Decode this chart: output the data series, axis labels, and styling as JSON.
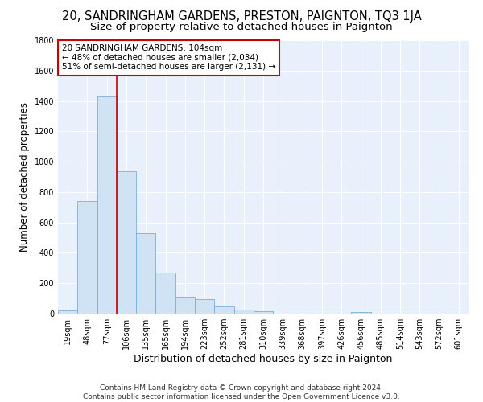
{
  "title1": "20, SANDRINGHAM GARDENS, PRESTON, PAIGNTON, TQ3 1JA",
  "title2": "Size of property relative to detached houses in Paignton",
  "xlabel": "Distribution of detached houses by size in Paignton",
  "ylabel": "Number of detached properties",
  "footnote1": "Contains HM Land Registry data © Crown copyright and database right 2024.",
  "footnote2": "Contains public sector information licensed under the Open Government Licence v3.0.",
  "bar_labels": [
    "19sqm",
    "48sqm",
    "77sqm",
    "106sqm",
    "135sqm",
    "165sqm",
    "194sqm",
    "223sqm",
    "252sqm",
    "281sqm",
    "310sqm",
    "339sqm",
    "368sqm",
    "397sqm",
    "426sqm",
    "456sqm",
    "485sqm",
    "514sqm",
    "543sqm",
    "572sqm",
    "601sqm"
  ],
  "bar_values": [
    20,
    740,
    1430,
    935,
    530,
    270,
    105,
    95,
    50,
    25,
    15,
    2,
    2,
    2,
    2,
    13,
    2,
    2,
    2,
    2,
    2
  ],
  "bar_color": "#d0e3f5",
  "bar_edge_color": "#7bafd4",
  "red_line_x": 2.5,
  "red_line_color": "#cc0000",
  "annotation_line1": "20 SANDRINGHAM GARDENS: 104sqm",
  "annotation_line2": "← 48% of detached houses are smaller (2,034)",
  "annotation_line3": "51% of semi-detached houses are larger (2,131) →",
  "annotation_box_color": "white",
  "annotation_box_edge_color": "#cc0000",
  "ylim": [
    0,
    1800
  ],
  "yticks": [
    0,
    200,
    400,
    600,
    800,
    1000,
    1200,
    1400,
    1600,
    1800
  ],
  "background_color": "#e8f0fb",
  "grid_color": "white",
  "title1_fontsize": 10.5,
  "title2_fontsize": 9.5,
  "xlabel_fontsize": 9,
  "ylabel_fontsize": 8.5,
  "tick_fontsize": 7,
  "annotation_fontsize": 7.5,
  "footnote_fontsize": 6.5
}
